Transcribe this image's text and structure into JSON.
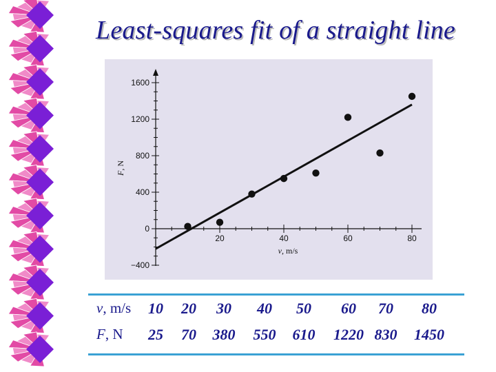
{
  "slide": {
    "title": "Least-squares fit of a straight line"
  },
  "colors": {
    "title": "#1a1a8c",
    "panel": "#e3e0ee",
    "table_rule": "#3aa1d4",
    "deco_purple": "#7a1fd6",
    "deco_pink": "#e24aa5"
  },
  "chart_data": {
    "type": "scatter",
    "xlabel_var": "v",
    "xlabel_unit": ", m/s",
    "ylabel_var": "F",
    "ylabel_unit": ", N",
    "x_ticks": [
      "20",
      "40",
      "60",
      "80"
    ],
    "y_ticks": [
      "1600",
      "1200",
      "800",
      "400",
      "0",
      "−400"
    ],
    "xlim": [
      0,
      80
    ],
    "ylim": [
      -400,
      1600
    ],
    "points": [
      {
        "x": 10,
        "y": 25
      },
      {
        "x": 20,
        "y": 70
      },
      {
        "x": 30,
        "y": 380
      },
      {
        "x": 40,
        "y": 550
      },
      {
        "x": 50,
        "y": 610
      },
      {
        "x": 60,
        "y": 1220
      },
      {
        "x": 70,
        "y": 830
      },
      {
        "x": 80,
        "y": 1450
      }
    ],
    "fit_line": {
      "x_start": 0,
      "y_start": -220,
      "x_end": 80,
      "y_end": 1360
    }
  },
  "table": {
    "v_head_var": "v",
    "v_head_unit": ", m/s",
    "f_head_var": "F",
    "f_head_unit": ", N",
    "v_values": [
      "10",
      "20",
      "30",
      "40",
      "50",
      "60",
      "70",
      "80"
    ],
    "f_values": [
      "25",
      "70",
      "380",
      "550",
      "610",
      "1220",
      "830",
      "1450"
    ]
  }
}
